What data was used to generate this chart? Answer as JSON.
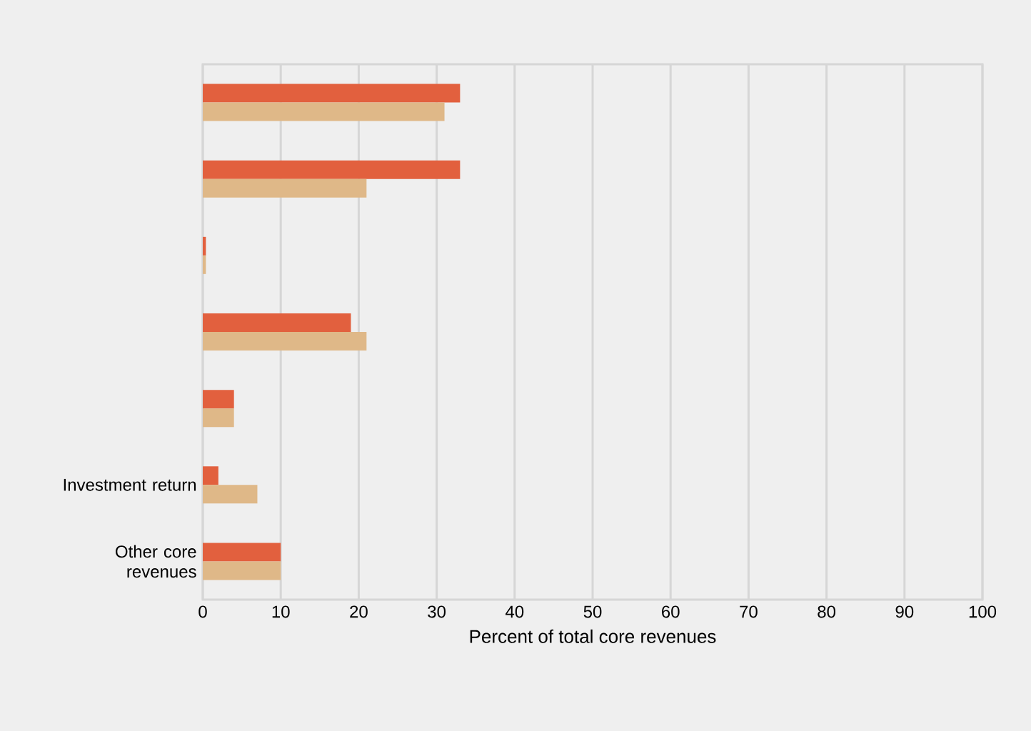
{
  "chart_data": {
    "type": "bar",
    "orientation": "horizontal",
    "categories": [
      null,
      null,
      null,
      null,
      null,
      "Investment return",
      "Other core revenues"
    ],
    "xlabel": "Percent of total core revenues",
    "xlim": [
      0,
      100
    ],
    "xticks": [
      0,
      10,
      20,
      30,
      40,
      50,
      60,
      70,
      80,
      90,
      100
    ],
    "grid": "x",
    "series": [
      {
        "color": "#e2603e",
        "values": [
          33,
          33,
          0.4,
          19,
          4,
          2,
          10
        ]
      },
      {
        "color": "#dfb888",
        "values": [
          31,
          21,
          0.4,
          21,
          4,
          7,
          10
        ]
      }
    ]
  }
}
